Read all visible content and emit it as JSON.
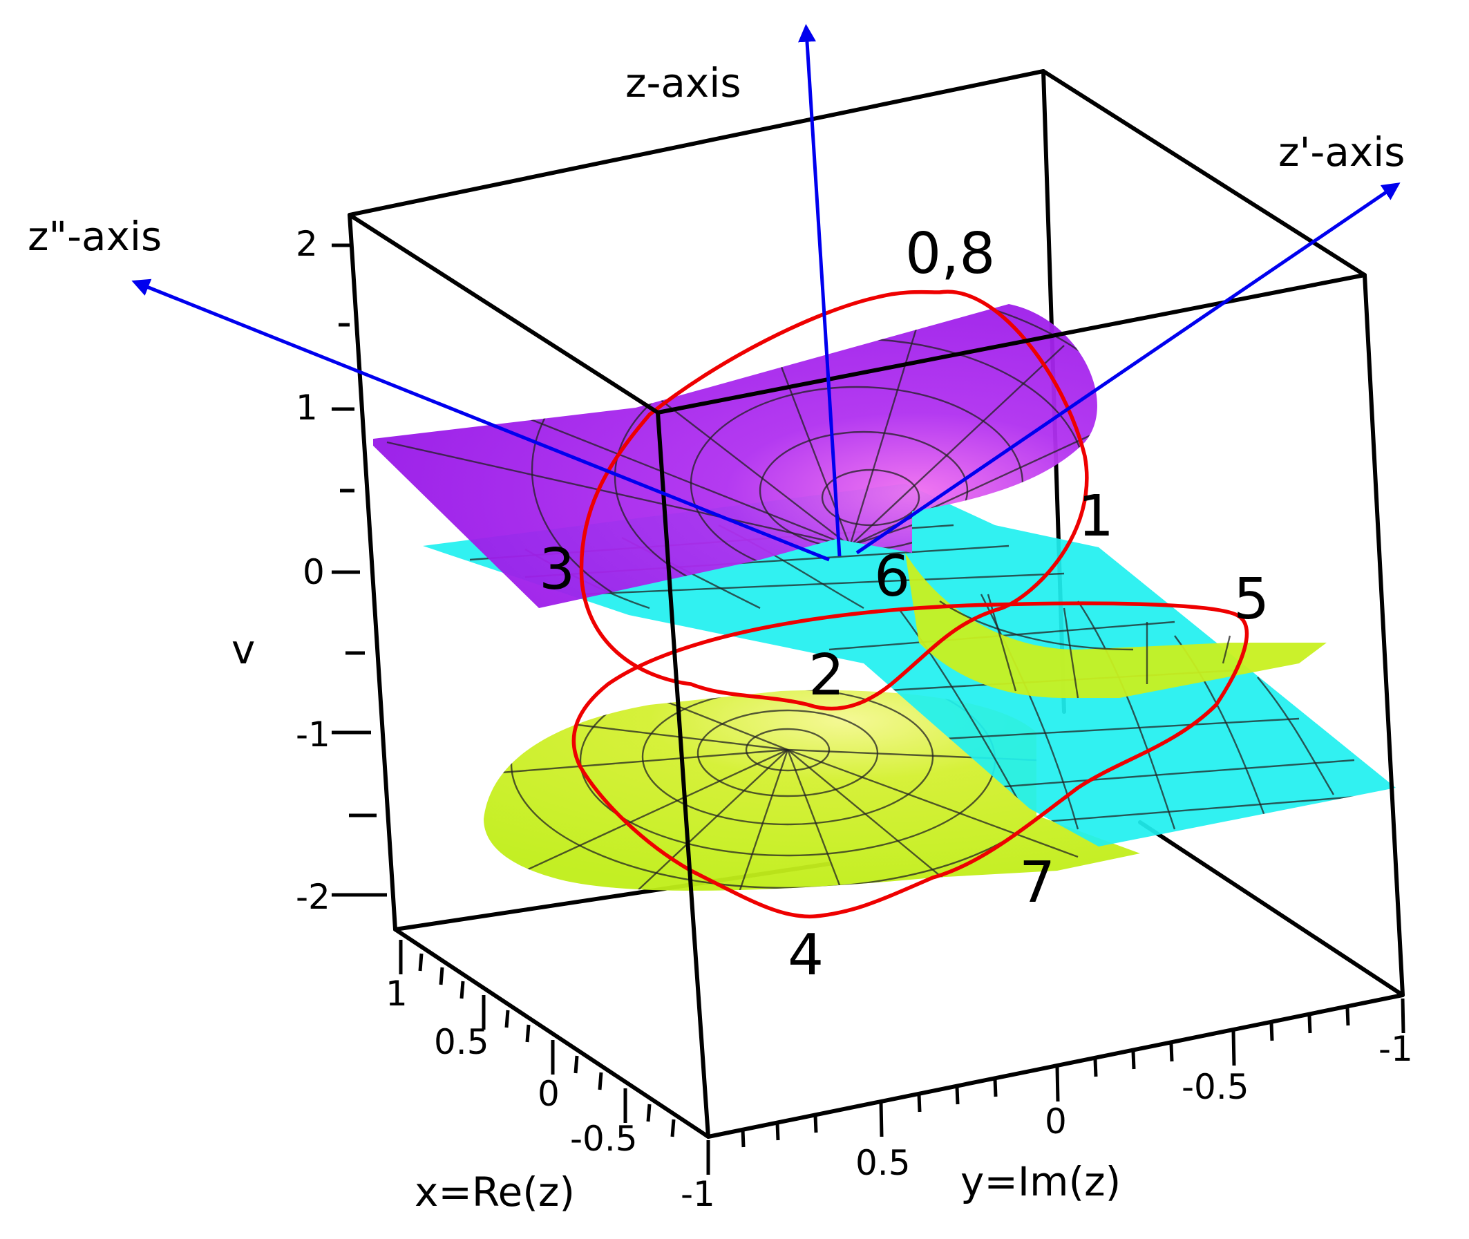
{
  "title": "",
  "axes": {
    "v_label": "v",
    "v_ticks": [
      "2",
      "1",
      "0",
      "-1",
      "-2"
    ],
    "x_label": "x=Re(z)",
    "x_ticks": [
      "1",
      "0.5",
      "0",
      "-0.5",
      "-1"
    ],
    "y_label": "y=Im(z)",
    "y_ticks": [
      "0.5",
      "0",
      "-0.5",
      "-1"
    ]
  },
  "arrows": {
    "z": "z-axis",
    "z_prime": "z'-axis",
    "z_double_prime": "z\"-axis",
    "color": "#0000ee"
  },
  "points": {
    "p08": "0,8",
    "p1": "1",
    "p2": "2",
    "p3": "3",
    "p4": "4",
    "p5": "5",
    "p6": "6",
    "p7": "7"
  },
  "colors": {
    "upper_sheet": "#a020f0",
    "middle_sheet": "#1ff0f0",
    "lower_sheet": "#c8f020",
    "path": "#ee0000",
    "box": "#000000"
  }
}
